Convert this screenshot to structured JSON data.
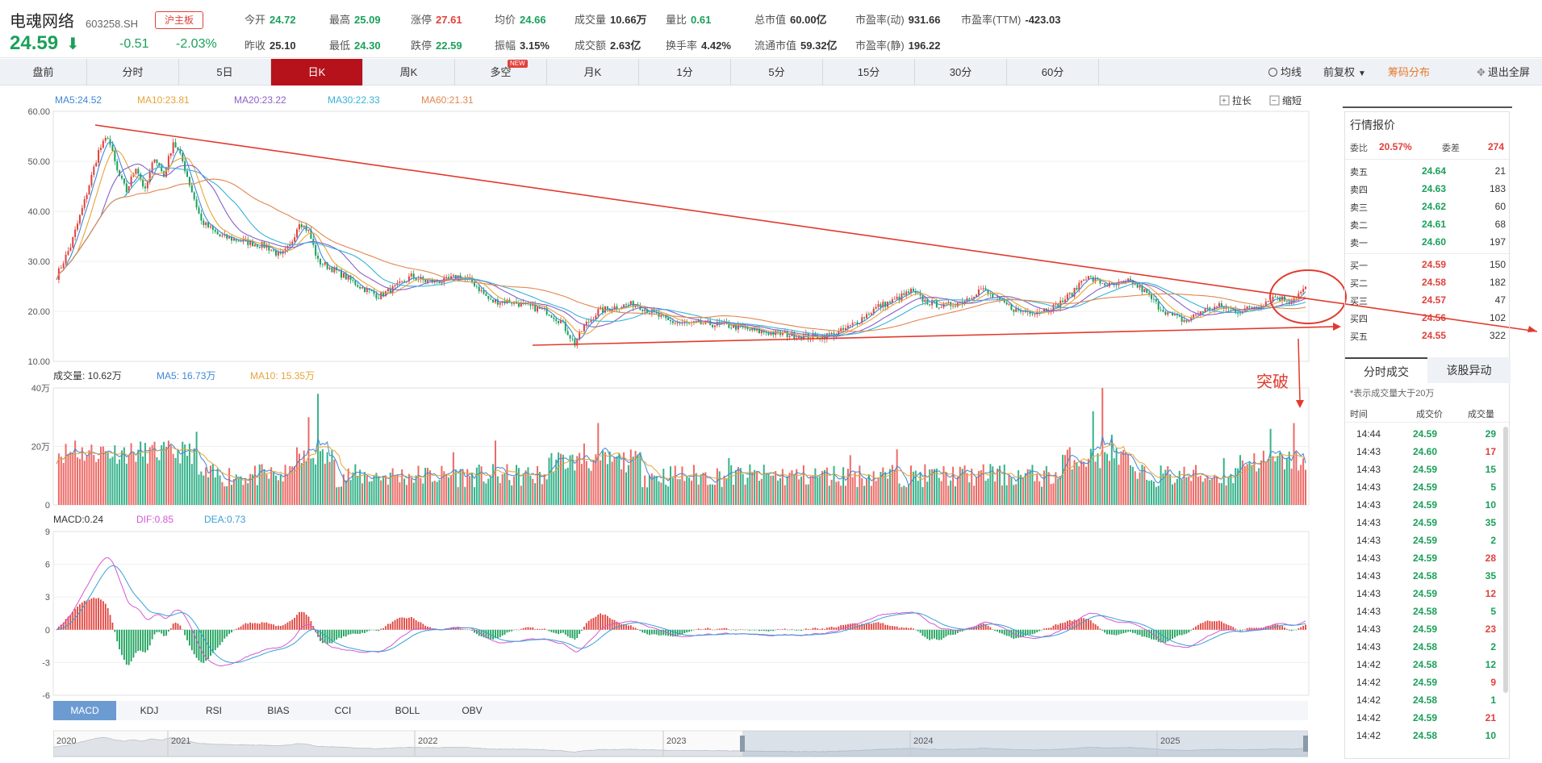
{
  "header": {
    "name": "电魂网络",
    "code": "603258.SH",
    "board": "沪主板",
    "price": "24.59",
    "change": "-0.51",
    "change_pct": "-2.03%",
    "quotes_row1": [
      {
        "label": "今开",
        "value": "24.72",
        "color": "green"
      },
      {
        "label": "最高",
        "value": "25.09",
        "color": "green"
      },
      {
        "label": "涨停",
        "value": "27.61",
        "color": "red"
      },
      {
        "label": "均价",
        "value": "24.66",
        "color": "green"
      },
      {
        "label": "成交量",
        "value": "10.66万",
        "color": "dark"
      },
      {
        "label": "量比",
        "value": "0.61",
        "color": "green"
      },
      {
        "label": "总市值",
        "value": "60.00亿",
        "color": "dark"
      },
      {
        "label": "市盈率(动)",
        "value": "931.66",
        "color": "dark"
      },
      {
        "label": "市盈率(TTM)",
        "value": "-423.03",
        "color": "dark"
      }
    ],
    "quotes_row2": [
      {
        "label": "昨收",
        "value": "25.10",
        "color": "dark"
      },
      {
        "label": "最低",
        "value": "24.30",
        "color": "green"
      },
      {
        "label": "跌停",
        "value": "22.59",
        "color": "green"
      },
      {
        "label": "振幅",
        "value": "3.15%",
        "color": "dark"
      },
      {
        "label": "成交额",
        "value": "2.63亿",
        "color": "dark"
      },
      {
        "label": "换手率",
        "value": "4.42%",
        "color": "dark"
      },
      {
        "label": "流通市值",
        "value": "59.32亿",
        "color": "dark"
      },
      {
        "label": "市盈率(静)",
        "value": "196.22",
        "color": "dark"
      }
    ]
  },
  "tabs": [
    "盘前",
    "分时",
    "5日",
    "日K",
    "周K",
    "多空",
    "月K",
    "1分",
    "5分",
    "15分",
    "30分",
    "60分"
  ],
  "active_tab": "日K",
  "new_badge": "NEW",
  "tools": {
    "ma_line": "均线",
    "adjust": "前复权",
    "chips": "筹码分布",
    "exit_full": "退出全屏"
  },
  "kchart": {
    "ma_legend": [
      {
        "label": "MA5:24.52",
        "color": "#3f87d6"
      },
      {
        "label": "MA10:23.81",
        "color": "#e8a33a"
      },
      {
        "label": "MA20:23.22",
        "color": "#8a5fc9"
      },
      {
        "label": "MA30:22.33",
        "color": "#39b3d6"
      },
      {
        "label": "MA60:21.31",
        "color": "#e0874f"
      }
    ],
    "stretch": "拉长",
    "shrink": "缩短",
    "y_ticks": [
      "60.00",
      "50.00",
      "40.00",
      "30.00",
      "20.00",
      "10.00"
    ],
    "annotation": "突破"
  },
  "volume": {
    "legend": [
      {
        "label": "成交量: 10.62万",
        "color": "#333"
      },
      {
        "label": "MA5: 16.73万",
        "color": "#3f87d6"
      },
      {
        "label": "MA10: 15.35万",
        "color": "#e8a33a"
      }
    ],
    "y_ticks": [
      "40万",
      "20万",
      "0"
    ]
  },
  "macd": {
    "legend": [
      {
        "label": "MACD:0.24",
        "color": "#333"
      },
      {
        "label": "DIF:0.85",
        "color": "#d45ad1"
      },
      {
        "label": "DEA:0.73",
        "color": "#39a0d6"
      }
    ],
    "y_ticks": [
      "9",
      "6",
      "3",
      "0",
      "-3",
      "-6"
    ]
  },
  "indicator_tabs": [
    "MACD",
    "KDJ",
    "RSI",
    "BIAS",
    "CCI",
    "BOLL",
    "OBV"
  ],
  "active_indicator": "MACD",
  "timeline_years": [
    "2020",
    "2021",
    "2022",
    "2023",
    "2024",
    "2025"
  ],
  "sidebar": {
    "title": "行情报价",
    "weibi_label": "委比",
    "weibi_value": "20.57%",
    "weicha_label": "委差",
    "weicha_value": "274",
    "asks": [
      {
        "label": "卖五",
        "price": "24.64",
        "vol": "21"
      },
      {
        "label": "卖四",
        "price": "24.63",
        "vol": "183"
      },
      {
        "label": "卖三",
        "price": "24.62",
        "vol": "60"
      },
      {
        "label": "卖二",
        "price": "24.61",
        "vol": "68"
      },
      {
        "label": "卖一",
        "price": "24.60",
        "vol": "197"
      }
    ],
    "bids": [
      {
        "label": "买一",
        "price": "24.59",
        "vol": "150"
      },
      {
        "label": "买二",
        "price": "24.58",
        "vol": "182"
      },
      {
        "label": "买三",
        "price": "24.57",
        "vol": "47"
      },
      {
        "label": "买四",
        "price": "24.56",
        "vol": "102"
      },
      {
        "label": "买五",
        "price": "24.55",
        "vol": "322"
      }
    ],
    "tab_trades": "分时成交",
    "tab_moves": "该股异动",
    "note": "*表示成交量大于20万",
    "col_time": "时间",
    "col_price": "成交价",
    "col_vol": "成交量",
    "trades": [
      {
        "t": "14:44",
        "p": "24.59",
        "v": "29",
        "c": "green"
      },
      {
        "t": "14:43",
        "p": "24.60",
        "v": "17",
        "c": "red"
      },
      {
        "t": "14:43",
        "p": "24.59",
        "v": "15",
        "c": "green"
      },
      {
        "t": "14:43",
        "p": "24.59",
        "v": "5",
        "c": "green"
      },
      {
        "t": "14:43",
        "p": "24.59",
        "v": "10",
        "c": "green"
      },
      {
        "t": "14:43",
        "p": "24.59",
        "v": "35",
        "c": "green"
      },
      {
        "t": "14:43",
        "p": "24.59",
        "v": "2",
        "c": "green"
      },
      {
        "t": "14:43",
        "p": "24.59",
        "v": "28",
        "c": "red"
      },
      {
        "t": "14:43",
        "p": "24.58",
        "v": "35",
        "c": "green"
      },
      {
        "t": "14:43",
        "p": "24.59",
        "v": "12",
        "c": "red"
      },
      {
        "t": "14:43",
        "p": "24.58",
        "v": "5",
        "c": "green"
      },
      {
        "t": "14:43",
        "p": "24.59",
        "v": "23",
        "c": "red"
      },
      {
        "t": "14:43",
        "p": "24.58",
        "v": "2",
        "c": "green"
      },
      {
        "t": "14:42",
        "p": "24.58",
        "v": "12",
        "c": "green"
      },
      {
        "t": "14:42",
        "p": "24.59",
        "v": "9",
        "c": "red"
      },
      {
        "t": "14:42",
        "p": "24.58",
        "v": "1",
        "c": "green"
      },
      {
        "t": "14:42",
        "p": "24.59",
        "v": "21",
        "c": "red"
      },
      {
        "t": "14:42",
        "p": "24.58",
        "v": "10",
        "c": "green"
      }
    ]
  }
}
